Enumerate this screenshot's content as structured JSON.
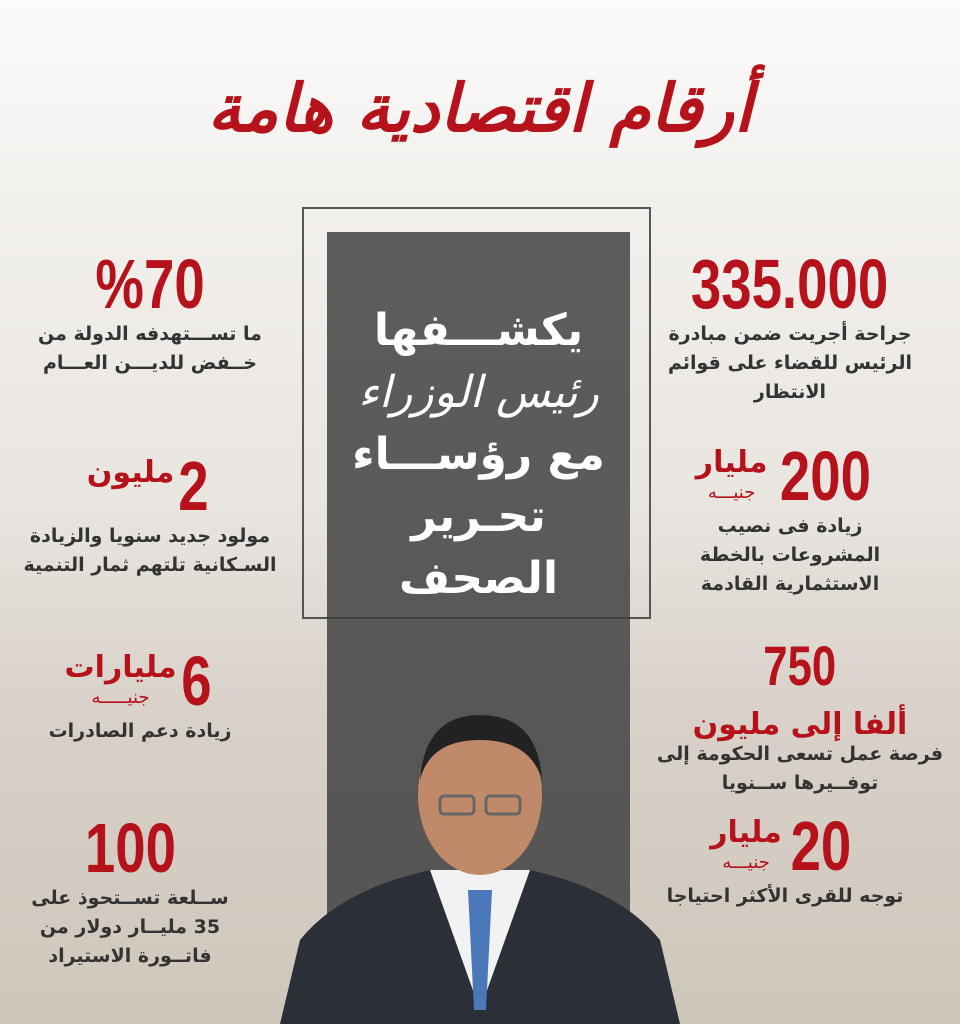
{
  "title": "أرقام اقتصادية هامة",
  "center": {
    "lines": [
      "يكشـــفها",
      "رئيس الوزراء",
      "مع رؤســـاء",
      "تحـرير الصحف"
    ]
  },
  "right": [
    {
      "number": "335.000",
      "unit": "",
      "subunit": "",
      "desc": "جراحة أجريت ضمن مبادرة الرئيس للقضاء على قوائم الانتظار"
    },
    {
      "number": "200",
      "unit": "مليار",
      "subunit": "جنيـــه",
      "desc": "زيادة فى نصيب المشروعات بالخطة الاستثمارية القادمة"
    },
    {
      "number": "750",
      "unit": "ألفا إلى مليون",
      "subunit": "",
      "desc": "فرصة عمل تسعى الحكومة إلى توفــيرها ســنويا"
    },
    {
      "number": "20",
      "unit": "مليار",
      "subunit": "جنيـــه",
      "desc": "توجه للقرى الأكثر احتياجا"
    }
  ],
  "left": [
    {
      "number": "%70",
      "unit": "",
      "subunit": "",
      "desc": "ما تســـتهدفه الدولة من خــفض للديـــن العـــام"
    },
    {
      "number": "2",
      "unit": "مليون",
      "subunit": "",
      "desc": "مولود جديد سنويا والزيادة السـكانية تلتهم ثمار التنمية"
    },
    {
      "number": "6",
      "unit": "مليارات",
      "subunit": "جنيـــــه",
      "desc": "زيادة دعم الصادرات"
    },
    {
      "number": "100",
      "unit": "",
      "subunit": "",
      "desc": "ســلعة تســتحوذ على 35 مليــار دولار من فاتــورة الاستيراد"
    }
  ],
  "colors": {
    "accent": "#b5121b",
    "panel": "#3c3c3c"
  }
}
